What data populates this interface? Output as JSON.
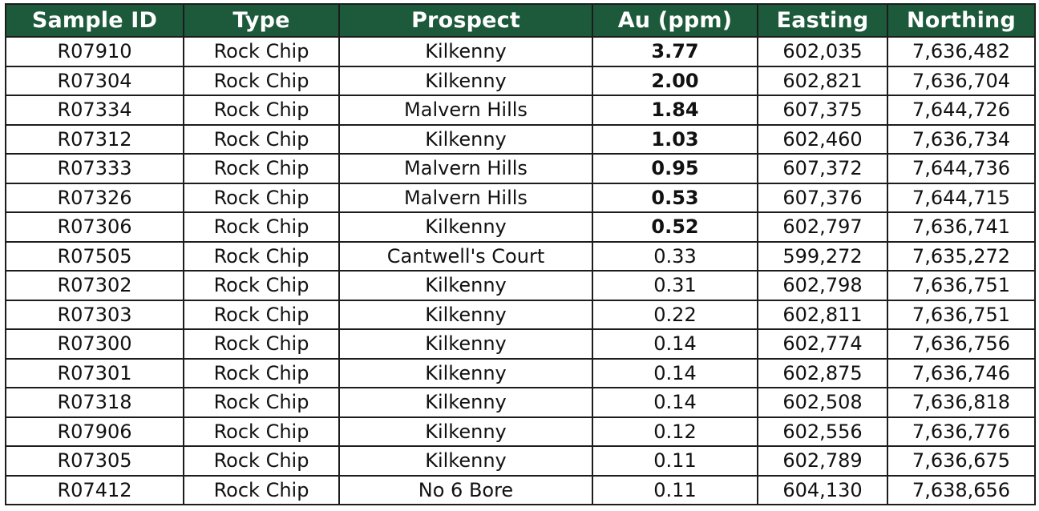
{
  "table": {
    "headers": [
      "Sample ID",
      "Type",
      "Prospect",
      "Au (ppm)",
      "Easting",
      "Northing"
    ],
    "rows": [
      {
        "sample_id": "R07910",
        "type": "Rock Chip",
        "prospect": "Kilkenny",
        "au": "3.77",
        "easting": "602,035",
        "northing": "7,636,482",
        "bold": true
      },
      {
        "sample_id": "R07304",
        "type": "Rock Chip",
        "prospect": "Kilkenny",
        "au": "2.00",
        "easting": "602,821",
        "northing": "7,636,704",
        "bold": true
      },
      {
        "sample_id": "R07334",
        "type": "Rock Chip",
        "prospect": "Malvern Hills",
        "au": "1.84",
        "easting": "607,375",
        "northing": "7,644,726",
        "bold": true
      },
      {
        "sample_id": "R07312",
        "type": "Rock Chip",
        "prospect": "Kilkenny",
        "au": "1.03",
        "easting": "602,460",
        "northing": "7,636,734",
        "bold": true
      },
      {
        "sample_id": "R07333",
        "type": "Rock Chip",
        "prospect": "Malvern Hills",
        "au": "0.95",
        "easting": "607,372",
        "northing": "7,644,736",
        "bold": true
      },
      {
        "sample_id": "R07326",
        "type": "Rock Chip",
        "prospect": "Malvern Hills",
        "au": "0.53",
        "easting": "607,376",
        "northing": "7,644,715",
        "bold": true
      },
      {
        "sample_id": "R07306",
        "type": "Rock Chip",
        "prospect": "Kilkenny",
        "au": "0.52",
        "easting": "602,797",
        "northing": "7,636,741",
        "bold": true
      },
      {
        "sample_id": "R07505",
        "type": "Rock Chip",
        "prospect": "Cantwell's Court",
        "au": "0.33",
        "easting": "599,272",
        "northing": "7,635,272",
        "bold": false
      },
      {
        "sample_id": "R07302",
        "type": "Rock Chip",
        "prospect": "Kilkenny",
        "au": "0.31",
        "easting": "602,798",
        "northing": "7,636,751",
        "bold": false
      },
      {
        "sample_id": "R07303",
        "type": "Rock Chip",
        "prospect": "Kilkenny",
        "au": "0.22",
        "easting": "602,811",
        "northing": "7,636,751",
        "bold": false
      },
      {
        "sample_id": "R07300",
        "type": "Rock Chip",
        "prospect": "Kilkenny",
        "au": "0.14",
        "easting": "602,774",
        "northing": "7,636,756",
        "bold": false
      },
      {
        "sample_id": "R07301",
        "type": "Rock Chip",
        "prospect": "Kilkenny",
        "au": "0.14",
        "easting": "602,875",
        "northing": "7,636,746",
        "bold": false
      },
      {
        "sample_id": "R07318",
        "type": "Rock Chip",
        "prospect": "Kilkenny",
        "au": "0.14",
        "easting": "602,508",
        "northing": "7,636,818",
        "bold": false
      },
      {
        "sample_id": "R07906",
        "type": "Rock Chip",
        "prospect": "Kilkenny",
        "au": "0.12",
        "easting": "602,556",
        "northing": "7,636,776",
        "bold": false
      },
      {
        "sample_id": "R07305",
        "type": "Rock Chip",
        "prospect": "Kilkenny",
        "au": "0.11",
        "easting": "602,789",
        "northing": "7,636,675",
        "bold": false
      },
      {
        "sample_id": "R07412",
        "type": "Rock Chip",
        "prospect": "No 6 Bore",
        "au": "0.11",
        "easting": "604,130",
        "northing": "7,638,656",
        "bold": false
      }
    ]
  },
  "colors": {
    "header_background": "#1d5a3b",
    "header_text": "#ffffff",
    "border": "#1c1c1c"
  }
}
